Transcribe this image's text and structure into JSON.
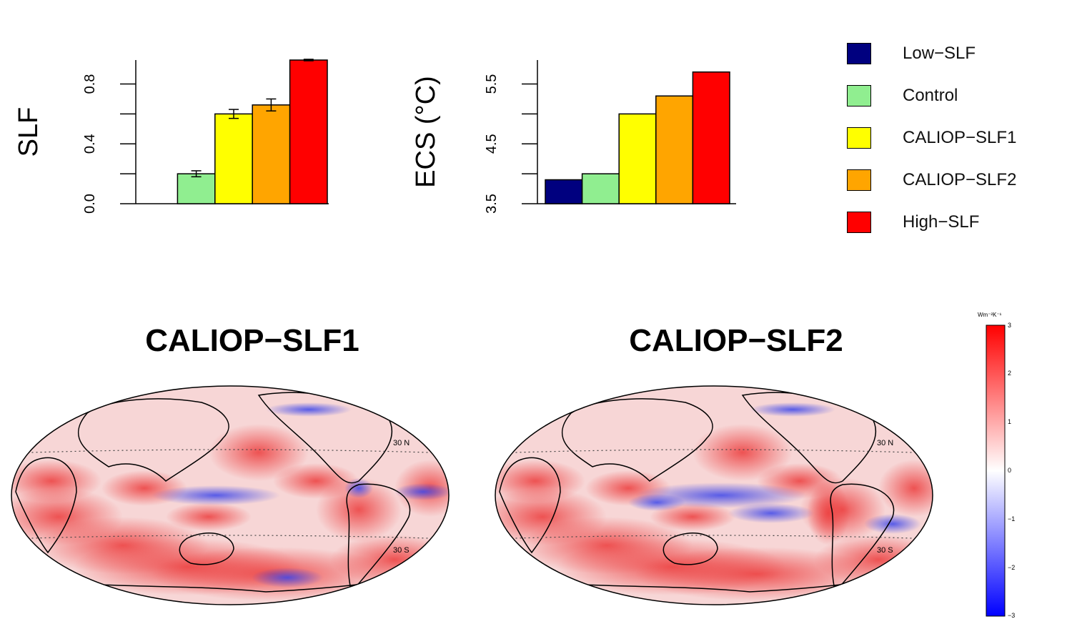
{
  "chart_data": [
    {
      "type": "bar",
      "ylabel": "SLF",
      "ylim": [
        0.0,
        0.96
      ],
      "yticks": [
        0.0,
        0.4,
        0.8
      ],
      "ytick_labels": [
        "0.0",
        "0.4",
        "0.8"
      ],
      "categories": [
        "Low-SLF",
        "Control",
        "CALIOP-SLF1",
        "CALIOP-SLF2",
        "High-SLF"
      ],
      "values": [
        0.0,
        0.2,
        0.6,
        0.66,
        0.96
      ],
      "errors": [
        0.0,
        0.02,
        0.03,
        0.04,
        0.005
      ],
      "colors": [
        "#00007f",
        "#90ee90",
        "#ffff00",
        "#ffa500",
        "#ff0000"
      ]
    },
    {
      "type": "bar",
      "ylabel": "ECS (°C)",
      "ylim": [
        3.5,
        5.9
      ],
      "yticks": [
        3.5,
        4.5,
        5.5
      ],
      "ytick_labels": [
        "3.5",
        "4.5",
        "5.5"
      ],
      "categories": [
        "Low-SLF",
        "Control",
        "CALIOP-SLF1",
        "CALIOP-SLF2",
        "High-SLF"
      ],
      "values": [
        3.9,
        4.0,
        5.0,
        5.3,
        5.7
      ],
      "colors": [
        "#00007f",
        "#90ee90",
        "#ffff00",
        "#ffa500",
        "#ff0000"
      ]
    },
    {
      "type": "heatmap",
      "title": "CALIOP−SLF1",
      "lat_labels": [
        "30 N",
        "30 S"
      ],
      "colorbar_range": [
        -3,
        3
      ]
    },
    {
      "type": "heatmap",
      "title": "CALIOP−SLF2",
      "lat_labels": [
        "30 N",
        "30 S"
      ],
      "colorbar_range": [
        -3,
        3
      ]
    }
  ],
  "legend": [
    {
      "label": "Low−SLF",
      "color": "#00007f"
    },
    {
      "label": "Control",
      "color": "#90ee90"
    },
    {
      "label": "CALIOP−SLF1",
      "color": "#ffff00"
    },
    {
      "label": "CALIOP−SLF2",
      "color": "#ffa500"
    },
    {
      "label": "High−SLF",
      "color": "#ff0000"
    }
  ],
  "maps": {
    "left_title": "CALIOP−SLF1",
    "right_title": "CALIOP−SLF2",
    "lat_north": "30 N",
    "lat_south": "30 S"
  },
  "colorbar": {
    "unit": "Wm⁻²K⁻¹",
    "ticks": [
      "3",
      "2",
      "1",
      "0",
      "−1",
      "−2",
      "−3"
    ],
    "colors": {
      "pos": "#ff0000",
      "zero": "#ffffff",
      "neg": "#0000ff"
    }
  }
}
